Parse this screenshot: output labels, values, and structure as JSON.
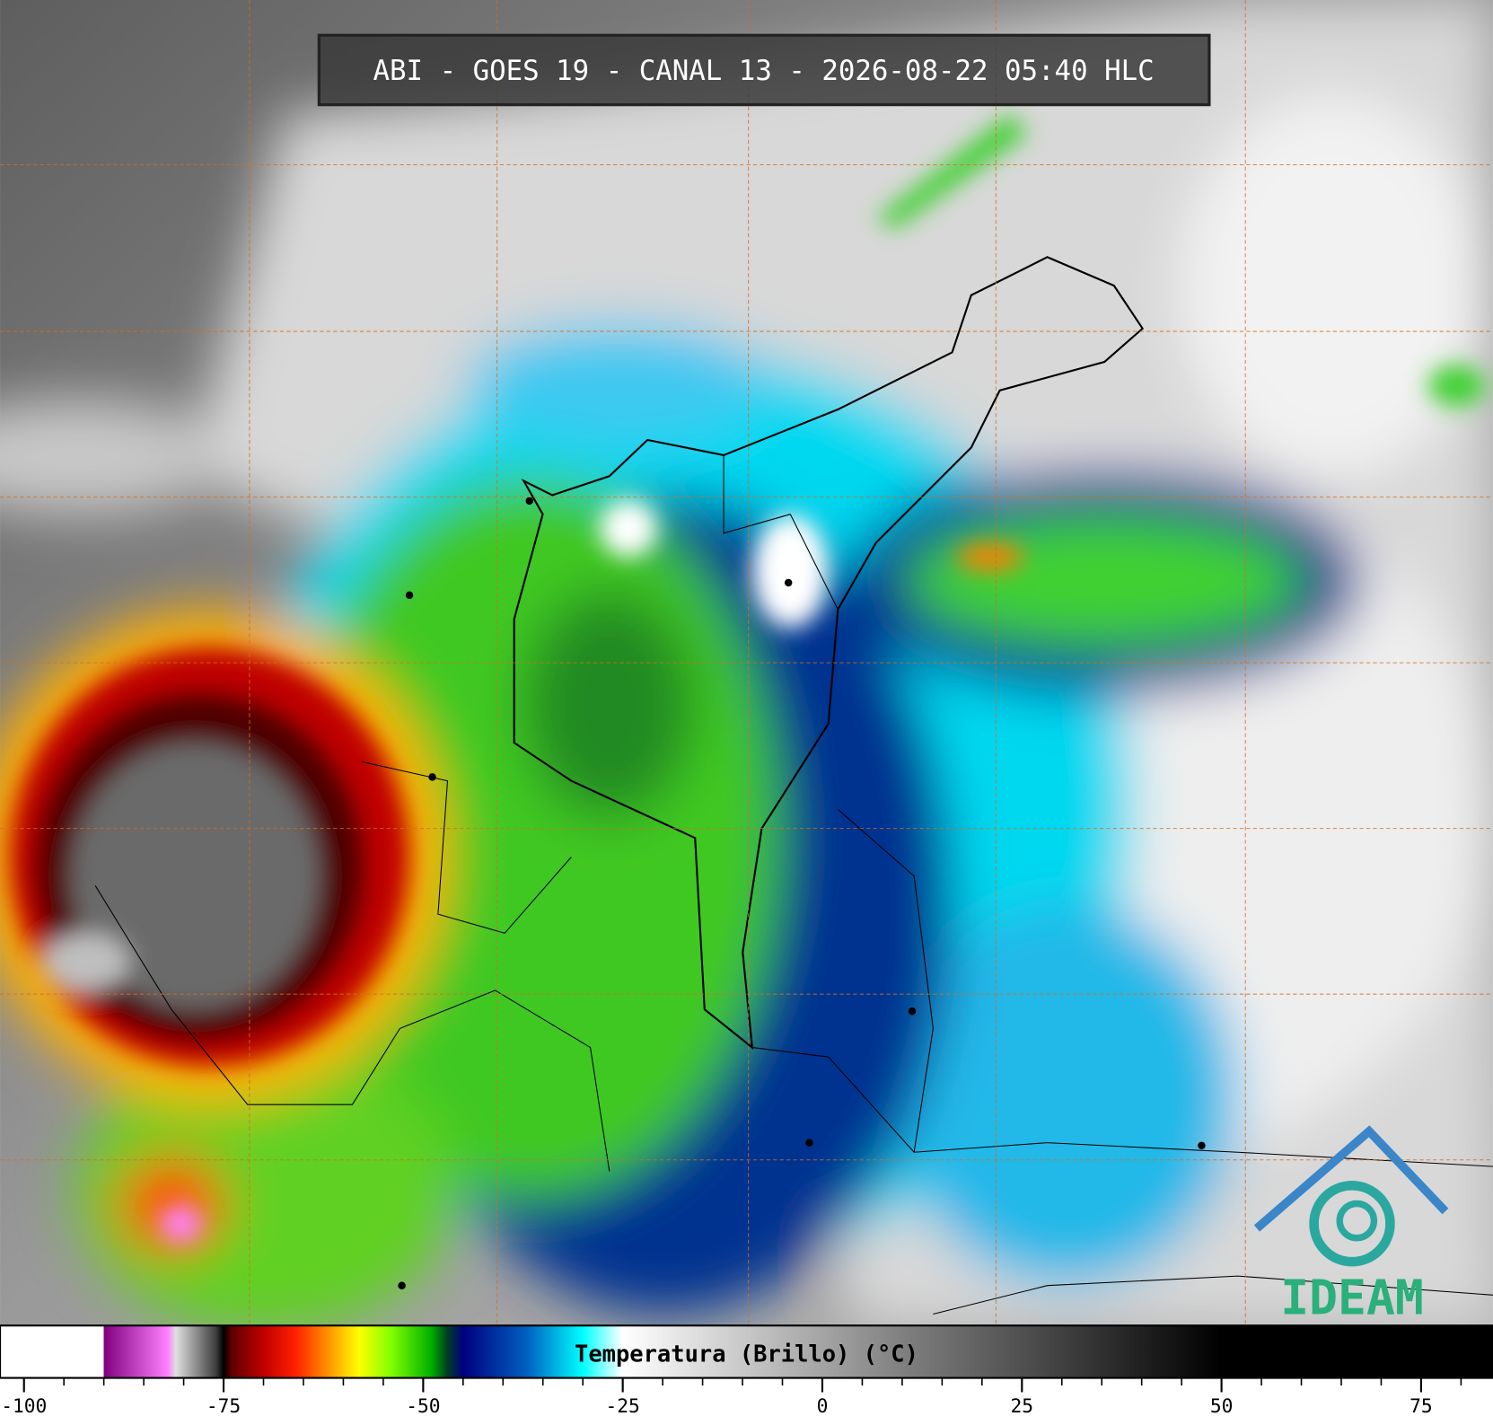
{
  "title": "ABI - GOES 19 - CANAL 13 - 2026-08-22 05:40 HLC",
  "logo": "IDEAM",
  "colorbar": {
    "label": "Temperatura (Brillo) (°C)",
    "lim": [
      -103,
      84
    ],
    "ticks": [
      -100,
      -75,
      -50,
      -25,
      0,
      25,
      50,
      75
    ],
    "minor_tick_step": 5,
    "stops": [
      {
        "value": -103,
        "color": "#ffffff"
      },
      {
        "value": -90,
        "color": "#ffffff"
      },
      {
        "value": -90,
        "color": "#800080"
      },
      {
        "value": -82,
        "color": "#ff80ff"
      },
      {
        "value": -81,
        "color": "#e0e0e0"
      },
      {
        "value": -76,
        "color": "#404040"
      },
      {
        "value": -75,
        "color": "#000000"
      },
      {
        "value": -74,
        "color": "#600000"
      },
      {
        "value": -70,
        "color": "#c00000"
      },
      {
        "value": -66,
        "color": "#ff2000"
      },
      {
        "value": -62,
        "color": "#ff9000"
      },
      {
        "value": -58,
        "color": "#ffff00"
      },
      {
        "value": -54,
        "color": "#80ff00"
      },
      {
        "value": -49,
        "color": "#00b000"
      },
      {
        "value": -47,
        "color": "#004020"
      },
      {
        "value": -45,
        "color": "#000080"
      },
      {
        "value": -37,
        "color": "#0060c0"
      },
      {
        "value": -30,
        "color": "#00ffff"
      },
      {
        "value": -25,
        "color": "#ffffff"
      },
      {
        "value": 10,
        "color": "#808080"
      },
      {
        "value": 50,
        "color": "#000000"
      },
      {
        "value": 84,
        "color": "#000000"
      }
    ]
  }
}
